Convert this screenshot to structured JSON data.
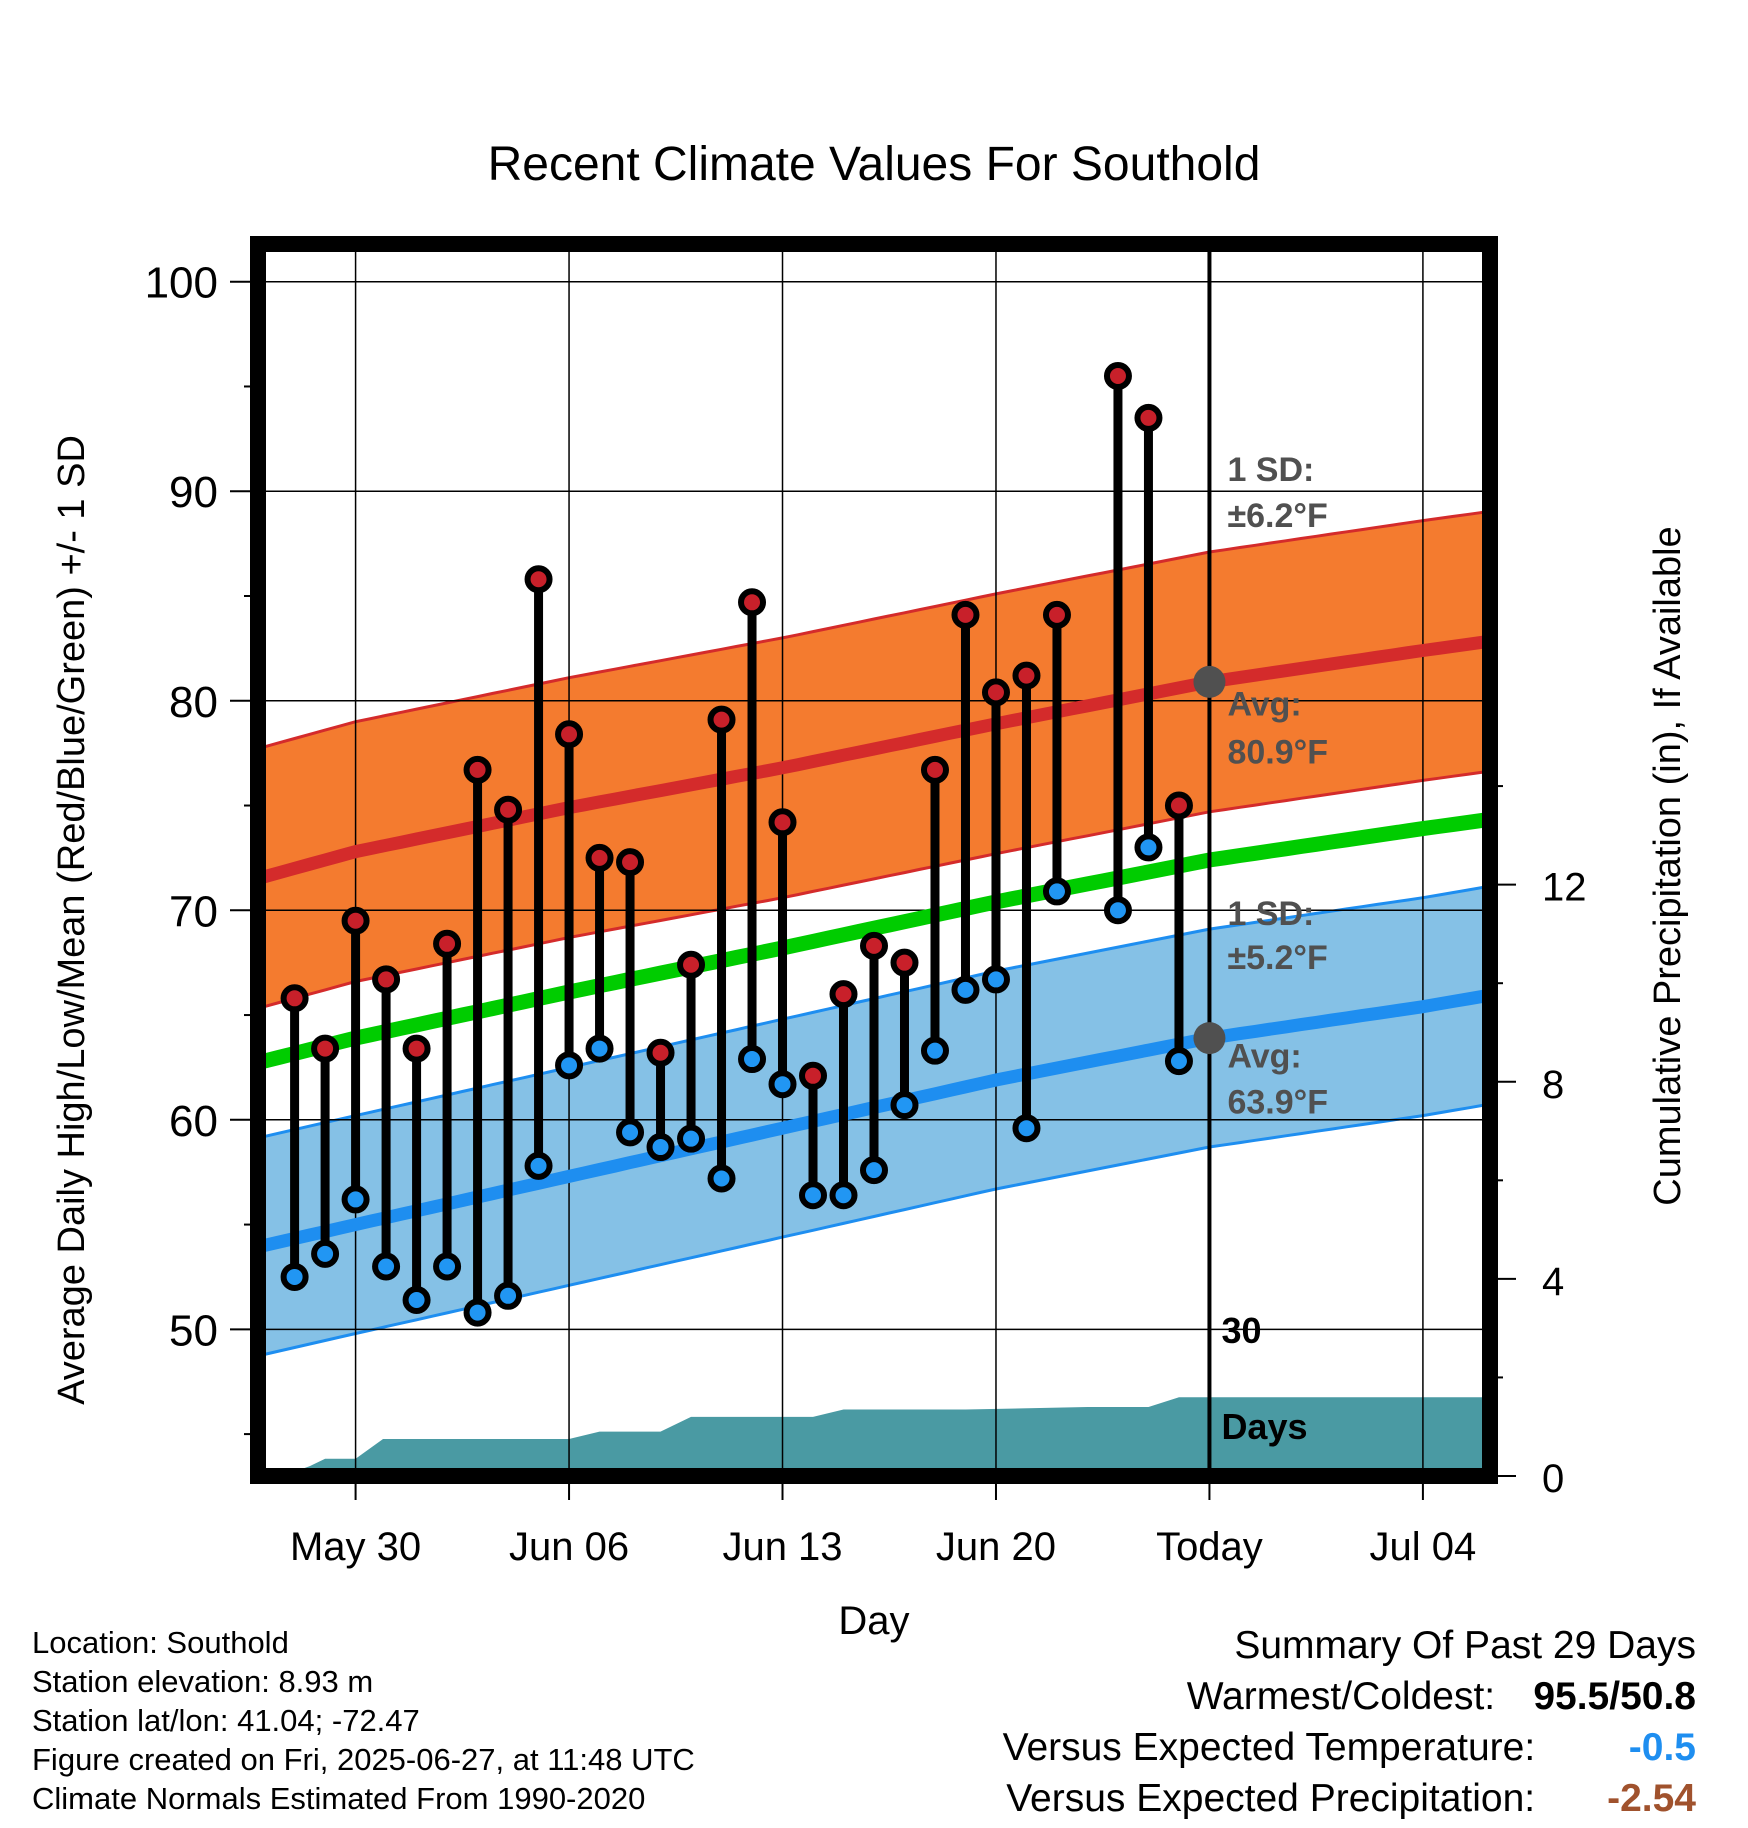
{
  "title": "Recent Climate Values For Southold",
  "chart_data": {
    "type": "scatter",
    "title": "Recent Climate Values For Southold",
    "xlabel": "Day",
    "ylabel": "Average Daily High/Low/Mean (Red/Blue/Green) +/- 1 SD",
    "y2label": "Cumulative Precipitation (in), If Available",
    "xlim": [
      -3.2,
      37.2
    ],
    "ylim": [
      43,
      101.8
    ],
    "y2lim": [
      0,
      25
    ],
    "x_ticks": [
      {
        "x": 0,
        "label": "May 30"
      },
      {
        "x": 7,
        "label": "Jun 06"
      },
      {
        "x": 14,
        "label": "Jun 13"
      },
      {
        "x": 21,
        "label": "Jun 20"
      },
      {
        "x": 28,
        "label": "Today"
      },
      {
        "x": 35,
        "label": "Jul 04"
      }
    ],
    "y_ticks": [
      50,
      60,
      70,
      80,
      90,
      100
    ],
    "y2_ticks": [
      0,
      4,
      8,
      12
    ],
    "grid": true,
    "today_x": 28,
    "window_label": "30 Days",
    "normal_high": {
      "x": [
        -3,
        0,
        7,
        14,
        21,
        28,
        35,
        37
      ],
      "mean": [
        71.6,
        72.8,
        74.9,
        76.8,
        78.9,
        80.9,
        82.4,
        82.8
      ],
      "sd": 6.2
    },
    "normal_low": {
      "x": [
        -3,
        0,
        7,
        14,
        21,
        28,
        35,
        37
      ],
      "mean": [
        54.0,
        55.0,
        57.3,
        59.6,
        61.9,
        63.9,
        65.4,
        65.9
      ],
      "sd": 5.2
    },
    "normal_mean": {
      "x": [
        -3,
        0,
        7,
        14,
        21,
        28,
        35,
        37
      ],
      "mean": [
        62.8,
        63.9,
        66.1,
        68.2,
        70.4,
        72.4,
        73.9,
        74.3
      ]
    },
    "sd_labels": {
      "high": {
        "sd_text": "1 SD:",
        "sd_value": "±6.2°F",
        "avg_text": "Avg:",
        "avg_value": "80.9°F",
        "avg": 80.9
      },
      "low": {
        "sd_text": "1 SD:",
        "sd_value": "±5.2°F",
        "avg_text": "Avg:",
        "avg_value": "63.9°F",
        "avg": 63.9
      }
    },
    "observed": {
      "x": [
        -2,
        -1,
        0,
        1,
        2,
        3,
        4,
        5,
        6,
        7,
        8,
        9,
        10,
        11,
        12,
        13,
        14,
        15,
        16,
        17,
        18,
        19,
        20,
        21,
        22,
        23,
        25,
        26,
        27
      ],
      "high": [
        65.8,
        63.4,
        69.5,
        66.7,
        63.4,
        68.4,
        76.7,
        74.8,
        85.8,
        78.4,
        72.5,
        72.3,
        63.2,
        67.4,
        79.1,
        84.7,
        74.2,
        62.1,
        66.0,
        68.3,
        67.5,
        76.7,
        84.1,
        80.4,
        81.2,
        84.1,
        95.5,
        93.5,
        75.0
      ],
      "low": [
        52.5,
        53.6,
        56.2,
        53.0,
        51.4,
        53.0,
        50.8,
        51.6,
        57.8,
        62.6,
        63.4,
        59.4,
        58.7,
        59.1,
        57.2,
        62.9,
        61.7,
        56.4,
        56.4,
        57.6,
        60.7,
        63.3,
        66.2,
        66.7,
        59.6,
        70.9,
        70.0,
        73.0,
        62.8
      ]
    },
    "precip": {
      "x": [
        -2.4,
        -1.5,
        -1,
        0,
        0.9,
        7,
        8,
        10,
        11,
        15,
        16,
        20,
        24,
        26,
        27,
        29,
        37
      ],
      "values": [
        0,
        0.2,
        0.35,
        0.35,
        0.75,
        0.75,
        0.9,
        0.9,
        1.2,
        1.2,
        1.35,
        1.35,
        1.4,
        1.4,
        1.6,
        1.6,
        1.6
      ]
    },
    "colors": {
      "high_band": "#f47b2f",
      "high_line": "#d42b2b",
      "low_band": "#85c1e6",
      "low_line": "#1e8ef0",
      "mean_line": "#00cc00",
      "precip": "#4a9aa3",
      "high_dot": "#c8202a",
      "low_dot": "#2196f3",
      "label_gray": "#505050"
    }
  },
  "info": {
    "location": "Location: Southold",
    "elevation": "Station elevation: 8.93 m",
    "latlon": "Station lat/lon: 41.04; -72.47",
    "created": "Figure created on Fri, 2025-06-27, at 11:48 UTC",
    "normals": "Climate Normals Estimated From 1990-2020"
  },
  "summary": {
    "title": "Summary Of Past 29 Days",
    "warm_cold_label": "Warmest/Coldest:",
    "warm_value": "95.5",
    "slash": "/",
    "cold_value": "50.8",
    "temp_label": "Versus Expected Temperature:",
    "temp_value": "-0.5",
    "temp_color": "#1e8ef0",
    "precip_label": "Versus Expected Precipitation:",
    "precip_value": "-2.54",
    "precip_color": "#a0522d"
  }
}
